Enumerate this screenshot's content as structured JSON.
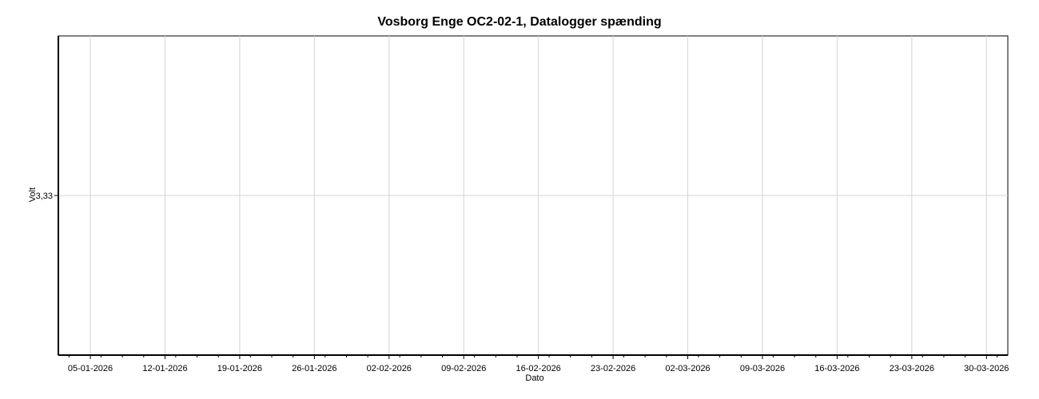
{
  "chart_data": {
    "type": "line",
    "title": "Vosborg Enge OC2-02-1, Datalogger spænding",
    "xlabel": "Dato",
    "ylabel": "Volt",
    "x_ticks": [
      "05-01-2026",
      "12-01-2026",
      "19-01-2026",
      "26-01-2026",
      "02-02-2026",
      "09-02-2026",
      "16-02-2026",
      "23-02-2026",
      "02-03-2026",
      "09-03-2026",
      "16-03-2026",
      "23-03-2026",
      "30-03-2026"
    ],
    "y_ticks": [
      "3,33"
    ],
    "y_tick_values": [
      3.33
    ],
    "ylim": [
      3.32,
      3.34
    ],
    "xlim": [
      "2026-01-02",
      "2026-04-01"
    ],
    "grid": true,
    "series": []
  },
  "colors": {
    "grid": "#d3d3d3",
    "axis": "#000000",
    "frame": "#000000"
  }
}
